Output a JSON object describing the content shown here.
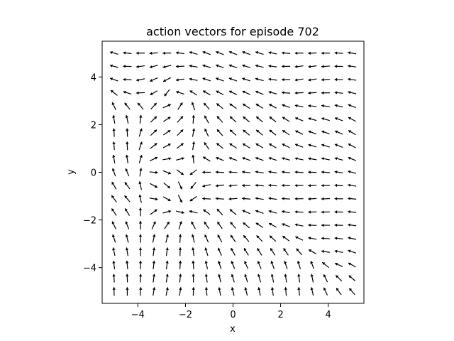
{
  "chart_data": {
    "type": "quiver",
    "title": "action vectors for episode 702",
    "xlabel": "x",
    "ylabel": "y",
    "xlim": [
      -5.5,
      5.5
    ],
    "ylim": [
      -5.5,
      5.5
    ],
    "xticks": [
      -4,
      -2,
      0,
      2,
      4
    ],
    "yticks": [
      -4,
      -2,
      0,
      2,
      4
    ],
    "grid": false,
    "arrow_color": "#000000",
    "grid_points": {
      "x_start": -5,
      "x_end": 5,
      "y_start": -5,
      "y_end": 5,
      "count": 19
    },
    "field_description_omitted": true
  }
}
